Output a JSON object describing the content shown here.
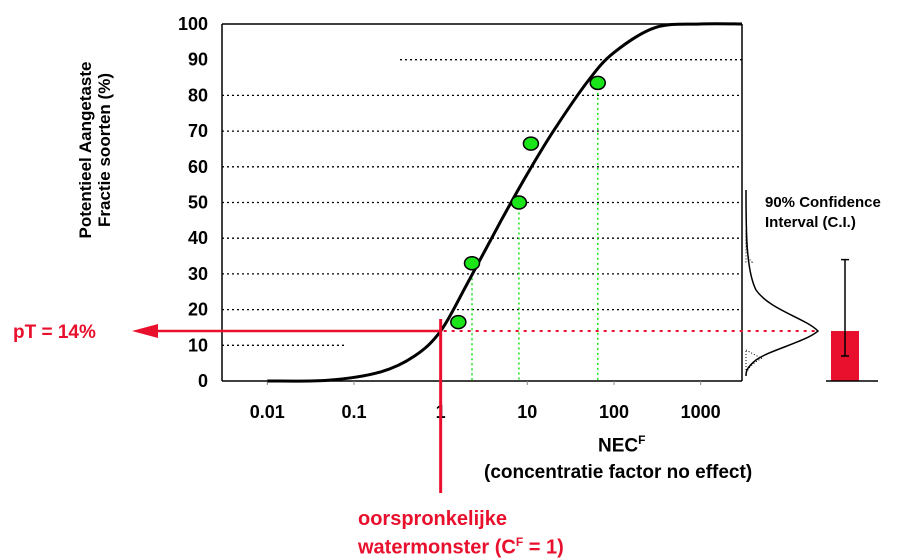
{
  "chart_data": {
    "type": "line",
    "title": "",
    "ylabel": [
      "Potentieel Aangetaste",
      "Fractie soorten (%)"
    ],
    "xlabel": "NEC",
    "xlabel_superscript": "F",
    "xlabel_sub": "(concentratie factor no effect)",
    "x_scale": "log",
    "xlim": [
      0.003,
      3000
    ],
    "ylim": [
      0,
      100
    ],
    "x_tick_labels": [
      "0.01",
      "0.1",
      "1",
      "10",
      "100",
      "1000"
    ],
    "x_ticks": [
      0.01,
      0.1,
      1,
      10,
      100,
      1000
    ],
    "y_ticks": [
      0,
      10,
      20,
      30,
      40,
      50,
      60,
      70,
      80,
      90,
      100
    ],
    "y_tick_labels": [
      "0",
      "10",
      "20",
      "30",
      "40",
      "50",
      "60",
      "70",
      "80",
      "90",
      "100"
    ],
    "grid": "horizontal dotted",
    "series": [
      {
        "kind": "curve",
        "description_points": [
          [
            0.01,
            0
          ],
          [
            0.05,
            0.2
          ],
          [
            0.2,
            2.5
          ],
          [
            0.5,
            7
          ],
          [
            1,
            14
          ],
          [
            2,
            27
          ],
          [
            5,
            45
          ],
          [
            10,
            58
          ],
          [
            20,
            70
          ],
          [
            50,
            84
          ],
          [
            100,
            92
          ],
          [
            300,
            99
          ],
          [
            1000,
            100
          ],
          [
            3000,
            100
          ]
        ]
      },
      {
        "kind": "points",
        "color": "#19e519",
        "points": [
          [
            1.6,
            16.5
          ],
          [
            2.3,
            33
          ],
          [
            8,
            50
          ],
          [
            11,
            66.5
          ],
          [
            65,
            83.5
          ]
        ]
      }
    ],
    "highlight": {
      "x": 1,
      "y": 14,
      "pT_label": "pT = 14%",
      "origin_label_line1": "oorspronkelijke",
      "origin_label_line2": "watermonster (C",
      "origin_label_sup": "F",
      "origin_label_end": " = 1)",
      "color": "#e8102c"
    },
    "confidence_interval": {
      "title_line1": "90% Confidence",
      "title_line2": "Interval (C.I.)",
      "value": 14,
      "lower": 7,
      "upper": 34,
      "bar_color": "#e8102c"
    }
  }
}
